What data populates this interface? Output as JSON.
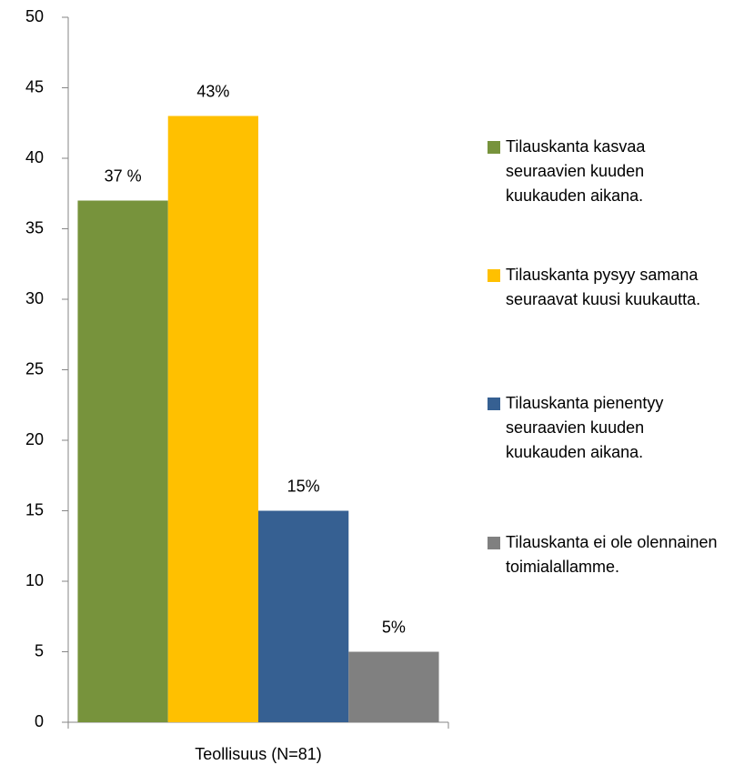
{
  "chart_data": {
    "type": "bar",
    "categories": [
      "Teollisuus (N=81)"
    ],
    "series": [
      {
        "name": "Tilauskanta kasvaa seuraavien kuuden kuukauden aikana.",
        "color": "#77933c",
        "values": [
          37
        ],
        "value_labels": [
          "37 %"
        ]
      },
      {
        "name": "Tilauskanta pysyy samana seuraavat kuusi kuukautta.",
        "color": "#ffc000",
        "values": [
          43
        ],
        "value_labels": [
          "43%"
        ]
      },
      {
        "name": "Tilauskanta pienentyy seuraavien kuuden kuukauden aikana.",
        "color": "#366092",
        "values": [
          15
        ],
        "value_labels": [
          "15%"
        ]
      },
      {
        "name": "Tilauskanta ei ole olennainen toimialallamme.",
        "color": "#808080",
        "values": [
          5
        ],
        "value_labels": [
          "5%"
        ]
      }
    ],
    "ylim": [
      0,
      50
    ],
    "yticks": [
      0,
      5,
      10,
      15,
      20,
      25,
      30,
      35,
      40,
      45,
      50
    ],
    "grid": false,
    "legend": "right"
  }
}
